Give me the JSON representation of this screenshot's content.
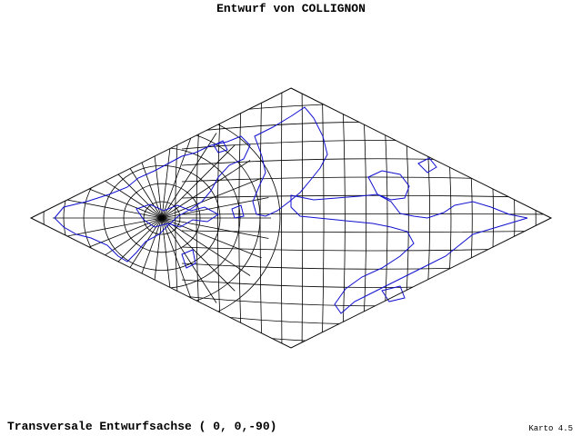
{
  "title": "Entwurf von COLLIGNON",
  "footer": {
    "axis_note": "Transversale Entwurfsachse ( 0, 0,-90)",
    "version": "Karto 4.5"
  }
}
